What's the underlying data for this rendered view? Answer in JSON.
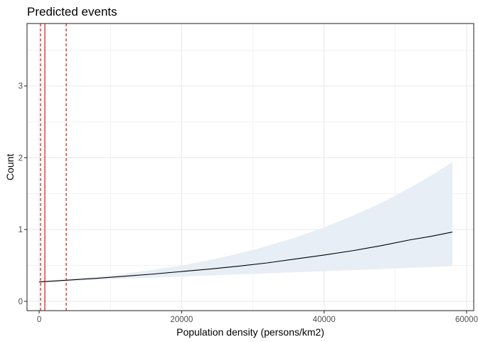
{
  "chart_data": {
    "type": "line",
    "title": "Predicted events",
    "xlabel": "Population density (persons/km2)",
    "ylabel": "Count",
    "xlim": [
      -1700,
      61000
    ],
    "ylim": [
      -0.13,
      3.87
    ],
    "x_ticks": [
      0,
      20000,
      40000,
      60000
    ],
    "x_tick_labels": [
      "0",
      "20000",
      "40000",
      "60000"
    ],
    "y_ticks": [
      0,
      1,
      2,
      3
    ],
    "y_tick_labels": [
      "0",
      "1",
      "2",
      "3"
    ],
    "grid": true,
    "legend": "none",
    "series": [
      {
        "x": [
          0,
          4000,
          8000,
          12000,
          16000,
          20000,
          24000,
          28000,
          32000,
          36000,
          40000,
          44000,
          48000,
          52000,
          55000,
          58000
        ],
        "y": [
          0.27,
          0.295,
          0.32,
          0.35,
          0.38,
          0.415,
          0.45,
          0.49,
          0.535,
          0.59,
          0.645,
          0.705,
          0.775,
          0.855,
          0.905,
          0.965
        ],
        "lower": [
          0.26,
          0.28,
          0.3,
          0.315,
          0.33,
          0.345,
          0.36,
          0.375,
          0.39,
          0.405,
          0.42,
          0.435,
          0.45,
          0.465,
          0.475,
          0.49
        ],
        "upper": [
          0.28,
          0.305,
          0.34,
          0.385,
          0.44,
          0.5,
          0.575,
          0.665,
          0.77,
          0.89,
          1.03,
          1.19,
          1.37,
          1.58,
          1.75,
          1.94
        ]
      }
    ],
    "vertical_lines": [
      {
        "x": 800,
        "style": "solid",
        "color": "#cc0000"
      },
      {
        "x": 200,
        "style": "dashed",
        "color": "#cc0000"
      },
      {
        "x": 3800,
        "style": "dashed",
        "color": "#cc0000"
      }
    ],
    "colors": {
      "line": "#000000",
      "ribbon": "#e8eef6",
      "grid": "#ebebeb",
      "panel_border": "#333333",
      "reference": "#cc0000"
    }
  }
}
